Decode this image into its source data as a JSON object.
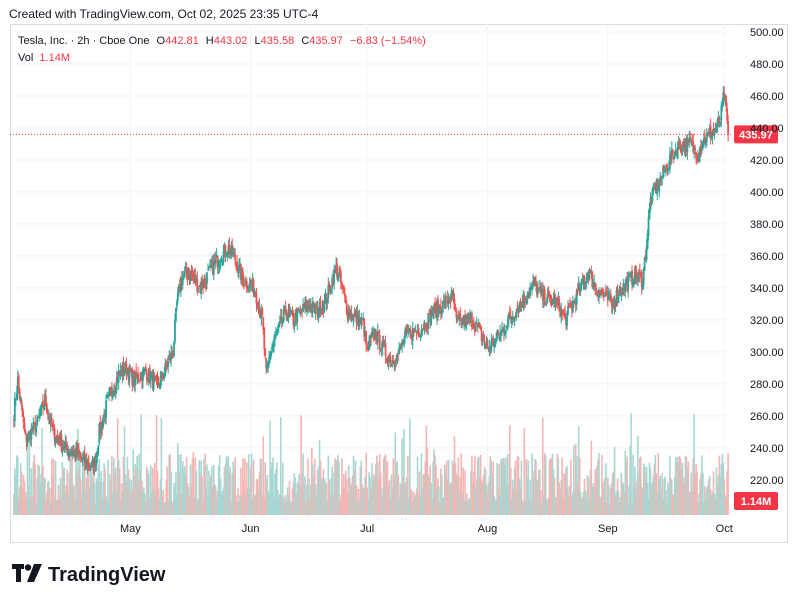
{
  "header": {
    "created_text": "Created with TradingView.com, Oct 02, 2025 23:35 UTC-4"
  },
  "legend": {
    "symbol": "Tesla, Inc. · 2h · Cboe One",
    "o_label": "O",
    "o_value": "442.81",
    "h_label": "H",
    "h_value": "443.02",
    "l_label": "L",
    "l_value": "435.58",
    "c_label": "C",
    "c_value": "435.97",
    "change": "−6.83 (−1.54%)",
    "vol_label": "Vol",
    "vol_value": "1.14M"
  },
  "footer": {
    "brand": "TradingView"
  },
  "colors": {
    "up": "#26a69a",
    "down": "#ef5350",
    "vol_up": "#a7d7d2",
    "vol_down": "#f5b5b3",
    "grid": "#f0f3fa",
    "last": "#f23645"
  },
  "chart_data": {
    "type": "candlestick",
    "symbol": "Tesla, Inc.",
    "interval": "2h",
    "ylim": [
      198,
      505
    ],
    "y_ticks": [
      "500.00",
      "480.00",
      "460.00",
      "440.00",
      "420.00",
      "400.00",
      "380.00",
      "360.00",
      "340.00",
      "320.00",
      "300.00",
      "280.00",
      "260.00",
      "240.00",
      "220.00"
    ],
    "x_ticks": [
      "May",
      "Jun",
      "Jul",
      "Aug",
      "Sep",
      "Oct"
    ],
    "last_price_label": "435.97",
    "last_volume_label": "1.14M",
    "grid": true,
    "close_anchors": [
      [
        "2025-04-01",
        262
      ],
      [
        "2025-04-02",
        282
      ],
      [
        "2025-04-04",
        245
      ],
      [
        "2025-04-07",
        255
      ],
      [
        "2025-04-09",
        270
      ],
      [
        "2025-04-11",
        250
      ],
      [
        "2025-04-14",
        240
      ],
      [
        "2025-04-16",
        238
      ],
      [
        "2025-04-18",
        234
      ],
      [
        "2025-04-21",
        228
      ],
      [
        "2025-04-22",
        232
      ],
      [
        "2025-04-23",
        250
      ],
      [
        "2025-04-24",
        258
      ],
      [
        "2025-04-25",
        268
      ],
      [
        "2025-04-28",
        286
      ],
      [
        "2025-04-30",
        290
      ],
      [
        "2025-05-02",
        282
      ],
      [
        "2025-05-05",
        288
      ],
      [
        "2025-05-08",
        278
      ],
      [
        "2025-05-12",
        300
      ],
      [
        "2025-05-13",
        330
      ],
      [
        "2025-05-14",
        345
      ],
      [
        "2025-05-16",
        350
      ],
      [
        "2025-05-19",
        340
      ],
      [
        "2025-05-21",
        348
      ],
      [
        "2025-05-23",
        356
      ],
      [
        "2025-05-26",
        365
      ],
      [
        "2025-05-28",
        358
      ],
      [
        "2025-05-30",
        345
      ],
      [
        "2025-06-02",
        340
      ],
      [
        "2025-06-04",
        320
      ],
      [
        "2025-06-05",
        285
      ],
      [
        "2025-06-06",
        300
      ],
      [
        "2025-06-10",
        325
      ],
      [
        "2025-06-12",
        320
      ],
      [
        "2025-06-16",
        330
      ],
      [
        "2025-06-18",
        325
      ],
      [
        "2025-06-20",
        330
      ],
      [
        "2025-06-23",
        352
      ],
      [
        "2025-06-24",
        345
      ],
      [
        "2025-06-26",
        325
      ],
      [
        "2025-06-30",
        318
      ],
      [
        "2025-07-01",
        300
      ],
      [
        "2025-07-03",
        312
      ],
      [
        "2025-07-07",
        294
      ],
      [
        "2025-07-09",
        298
      ],
      [
        "2025-07-11",
        310
      ],
      [
        "2025-07-15",
        315
      ],
      [
        "2025-07-18",
        325
      ],
      [
        "2025-07-21",
        330
      ],
      [
        "2025-07-23",
        335
      ],
      [
        "2025-07-24",
        318
      ],
      [
        "2025-07-28",
        320
      ],
      [
        "2025-07-30",
        312
      ],
      [
        "2025-08-01",
        302
      ],
      [
        "2025-08-04",
        310
      ],
      [
        "2025-08-06",
        318
      ],
      [
        "2025-08-08",
        325
      ],
      [
        "2025-08-11",
        335
      ],
      [
        "2025-08-13",
        342
      ],
      [
        "2025-08-15",
        335
      ],
      [
        "2025-08-19",
        330
      ],
      [
        "2025-08-21",
        320
      ],
      [
        "2025-08-25",
        340
      ],
      [
        "2025-08-27",
        350
      ],
      [
        "2025-08-29",
        340
      ],
      [
        "2025-09-02",
        330
      ],
      [
        "2025-09-04",
        338
      ],
      [
        "2025-09-08",
        348
      ],
      [
        "2025-09-10",
        345
      ],
      [
        "2025-09-11",
        368
      ],
      [
        "2025-09-12",
        395
      ],
      [
        "2025-09-15",
        410
      ],
      [
        "2025-09-17",
        420
      ],
      [
        "2025-09-19",
        428
      ],
      [
        "2025-09-22",
        430
      ],
      [
        "2025-09-24",
        425
      ],
      [
        "2025-09-26",
        433
      ],
      [
        "2025-09-29",
        440
      ],
      [
        "2025-09-30",
        445
      ],
      [
        "2025-10-01",
        462
      ],
      [
        "2025-10-02",
        436
      ]
    ]
  }
}
